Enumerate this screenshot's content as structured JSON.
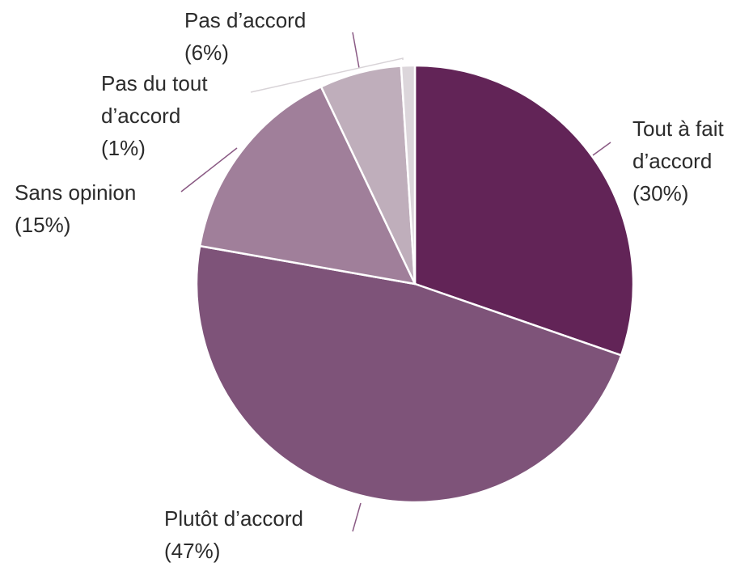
{
  "chart_data": {
    "type": "pie",
    "title": "",
    "start": "12 o'clock",
    "direction": "clockwise",
    "slices": [
      {
        "label_lines": [
          "Tout à fait",
          "d’accord",
          "(30%)"
        ],
        "value": 30,
        "color": "#622457"
      },
      {
        "label_lines": [
          "Plutôt d’accord",
          "(47%)"
        ],
        "value": 47,
        "color": "#7e5379"
      },
      {
        "label_lines": [
          "Sans opinion",
          "(15%)"
        ],
        "value": 15,
        "color": "#a07f9a"
      },
      {
        "label_lines": [
          "Pas d’accord",
          "(6%)"
        ],
        "value": 6,
        "color": "#bfaebb"
      },
      {
        "label_lines": [
          "Pas du tout",
          "d’accord",
          "(1%)"
        ],
        "value": 1,
        "color": "#dcd6db"
      }
    ],
    "leader_color": "#8a5a84"
  }
}
